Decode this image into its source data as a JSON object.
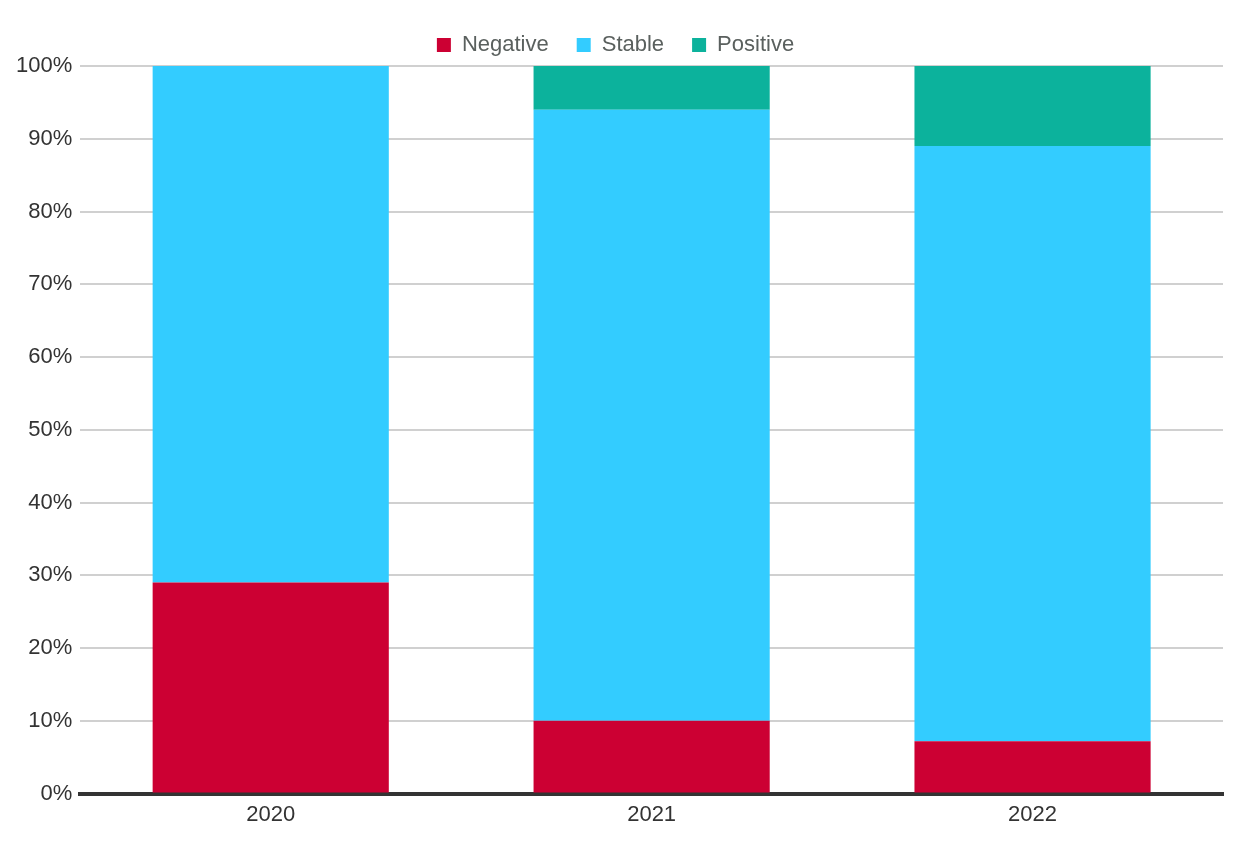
{
  "chart_data": {
    "type": "bar",
    "stacked": true,
    "categories": [
      "2020",
      "2021",
      "2022"
    ],
    "series": [
      {
        "name": "Negative",
        "color": "#cc0033",
        "values": [
          29,
          10,
          7.2
        ]
      },
      {
        "name": "Stable",
        "color": "#33ccff",
        "values": [
          71,
          84,
          81.8
        ]
      },
      {
        "name": "Positive",
        "color": "#0cb29c",
        "values": [
          0,
          6,
          11
        ]
      }
    ],
    "ylim": [
      0,
      100
    ],
    "yticks": [
      {
        "value": 0,
        "label": "0%"
      },
      {
        "value": 10,
        "label": "10%"
      },
      {
        "value": 20,
        "label": "20%"
      },
      {
        "value": 30,
        "label": "30%"
      },
      {
        "value": 40,
        "label": "40%"
      },
      {
        "value": 50,
        "label": "50%"
      },
      {
        "value": 60,
        "label": "60%"
      },
      {
        "value": 70,
        "label": "70%"
      },
      {
        "value": 80,
        "label": "80%"
      },
      {
        "value": 90,
        "label": "90%"
      },
      {
        "value": 100,
        "label": "100%"
      }
    ],
    "grid": "y",
    "legend": "top"
  }
}
